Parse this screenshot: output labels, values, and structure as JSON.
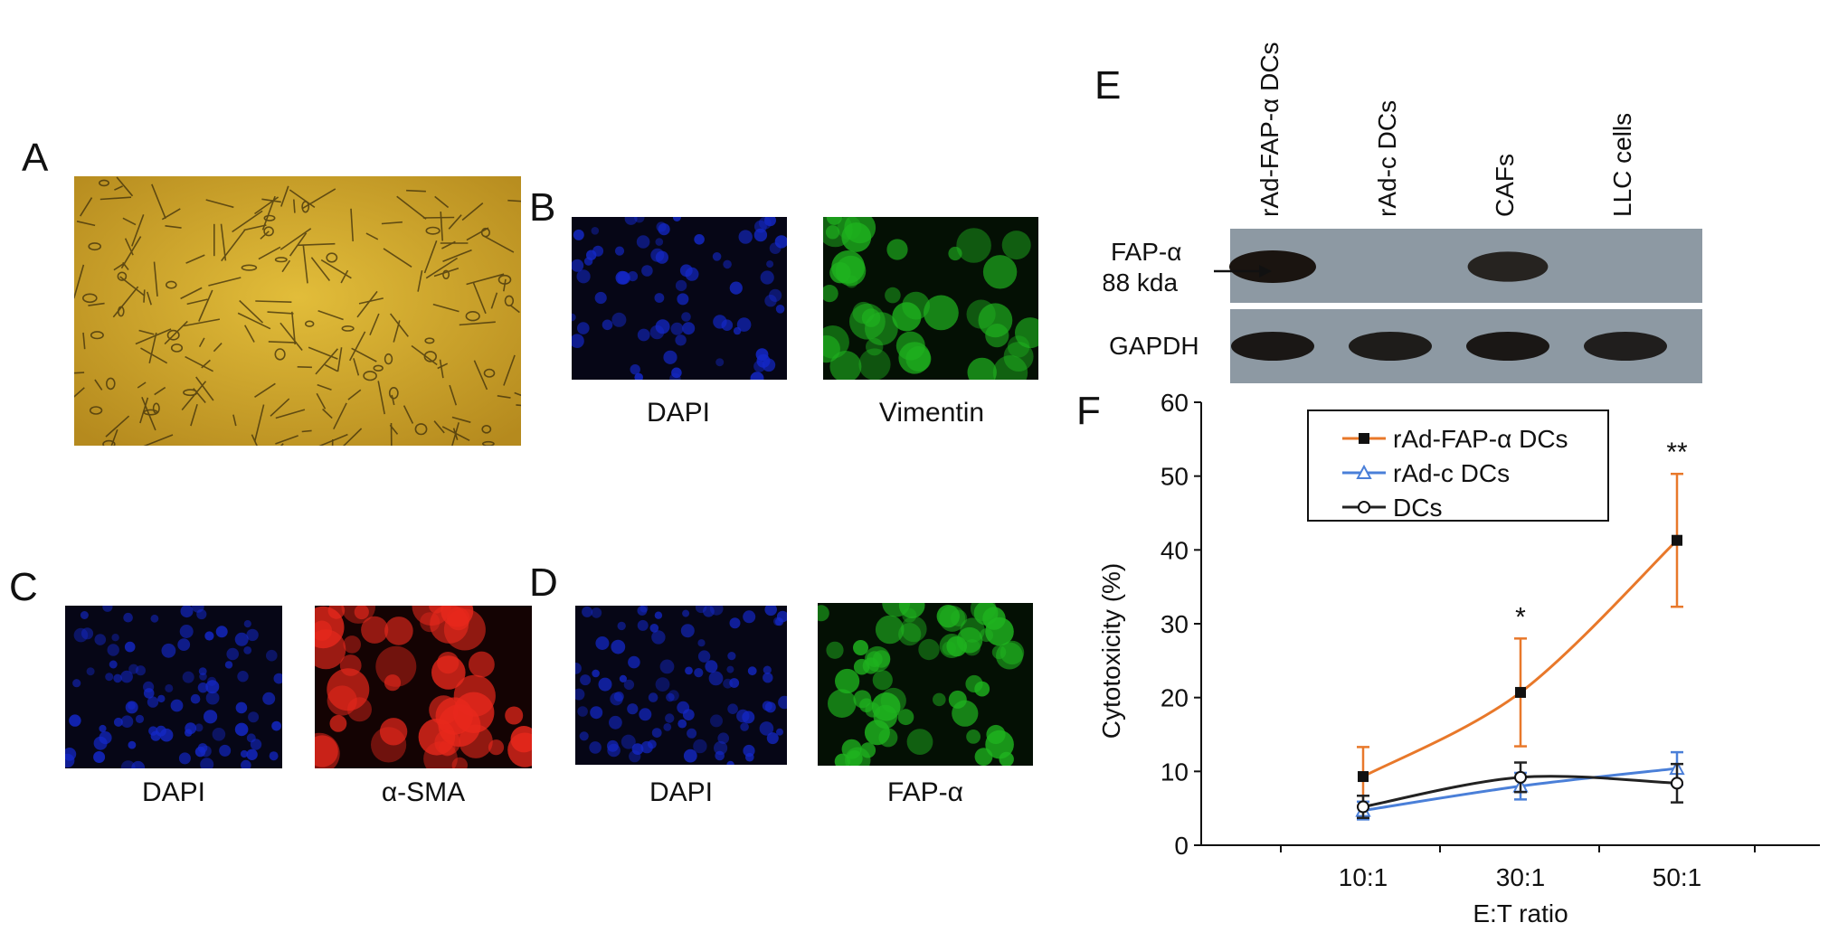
{
  "panels": {
    "A": {
      "label": "A"
    },
    "B": {
      "label": "B",
      "captions": [
        "DAPI",
        "Vimentin"
      ]
    },
    "C": {
      "label": "C",
      "captions": [
        "DAPI",
        "α-SMA"
      ]
    },
    "D": {
      "label": "D",
      "captions": [
        "DAPI",
        "FAP-α"
      ]
    },
    "E": {
      "label": "E",
      "lanes": [
        "rAd-FAP-α DCs",
        "rAd-c DCs",
        "CAFs",
        "LLC cells"
      ],
      "row1_label": "FAP-α",
      "row1_size": "88 kda",
      "row2_label": "GAPDH",
      "fap_band_intensity": [
        1.0,
        0.0,
        0.75,
        0.0
      ],
      "gapdh_band_intensity": [
        0.9,
        0.85,
        0.9,
        0.8
      ]
    },
    "F": {
      "label": "F"
    }
  },
  "colors": {
    "brightfield": "#c9a02a",
    "dapi": "#1428c8",
    "green": "#1fb31f",
    "red": "#e8281c",
    "orange": "#e8782a",
    "blue": "#4a7fd8",
    "black": "#222222"
  },
  "chart_data": {
    "type": "line",
    "xlabel": "E:T ratio",
    "ylabel": "Cytotoxicity (%)",
    "categories": [
      "10:1",
      "30:1",
      "50:1"
    ],
    "ylim": [
      0,
      60
    ],
    "yticks": [
      0,
      10,
      20,
      30,
      40,
      50,
      60
    ],
    "grid": false,
    "legend_position": "top",
    "series": [
      {
        "name": "rAd-FAP-α DCs",
        "marker": "square-filled",
        "color": "#e8782a",
        "values": [
          9.3,
          20.7,
          41.3
        ],
        "errors": [
          4.0,
          7.3,
          9.0
        ]
      },
      {
        "name": "rAd-c DCs",
        "marker": "triangle-open",
        "color": "#4a7fd8",
        "values": [
          4.7,
          8.0,
          10.4
        ],
        "errors": [
          1.2,
          1.8,
          2.2
        ]
      },
      {
        "name": "DCs",
        "marker": "circle-open",
        "color": "#222222",
        "values": [
          5.2,
          9.2,
          8.4
        ],
        "errors": [
          1.5,
          2.0,
          2.6
        ]
      }
    ],
    "annotations": [
      {
        "category": "30:1",
        "text": "*"
      },
      {
        "category": "50:1",
        "text": "**"
      }
    ]
  }
}
